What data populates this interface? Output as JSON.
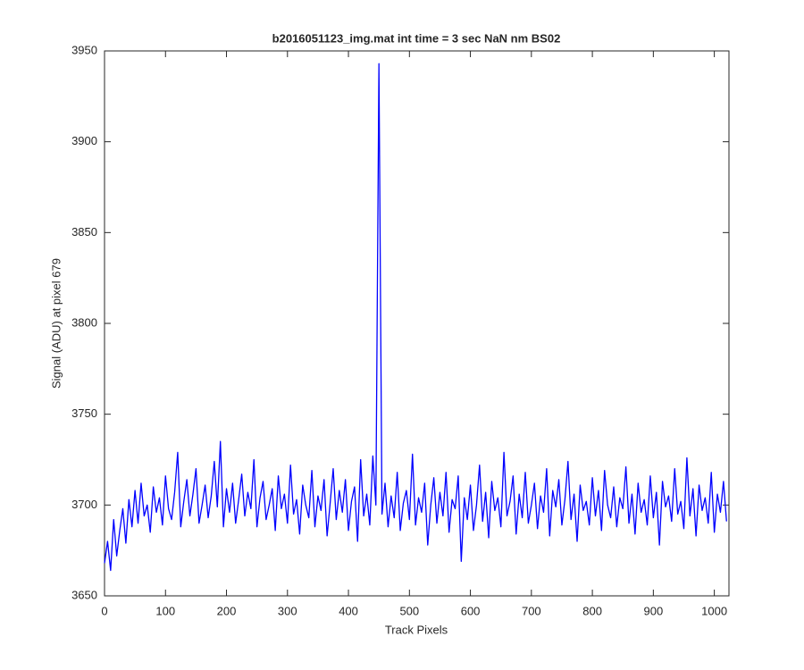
{
  "chart_data": {
    "type": "line",
    "title": "b2016051123_img.mat int time = 3 sec  NaN nm BS02",
    "xlabel": "Track Pixels",
    "ylabel": "Signal (ADU) at pixel 679",
    "color": "#0000ff",
    "xlim": [
      0,
      1024
    ],
    "ylim": [
      3650,
      3950
    ],
    "xticks": [
      0,
      100,
      200,
      300,
      400,
      500,
      600,
      700,
      800,
      900,
      1000
    ],
    "yticks": [
      3650,
      3700,
      3750,
      3800,
      3850,
      3900,
      3950
    ],
    "grid": false,
    "x": [
      0,
      5,
      10,
      15,
      20,
      25,
      30,
      35,
      40,
      45,
      50,
      55,
      60,
      65,
      70,
      75,
      80,
      85,
      90,
      95,
      100,
      105,
      110,
      115,
      120,
      125,
      130,
      135,
      140,
      145,
      150,
      155,
      160,
      165,
      170,
      175,
      180,
      185,
      190,
      195,
      200,
      205,
      210,
      215,
      220,
      225,
      230,
      235,
      240,
      245,
      250,
      255,
      260,
      265,
      270,
      275,
      280,
      285,
      290,
      295,
      300,
      305,
      310,
      315,
      320,
      325,
      330,
      335,
      340,
      345,
      350,
      355,
      360,
      365,
      370,
      375,
      380,
      385,
      390,
      395,
      400,
      405,
      410,
      415,
      420,
      425,
      430,
      435,
      440,
      445,
      450,
      455,
      460,
      465,
      470,
      475,
      480,
      485,
      490,
      495,
      500,
      505,
      510,
      515,
      520,
      525,
      530,
      535,
      540,
      545,
      550,
      555,
      560,
      565,
      570,
      575,
      580,
      585,
      590,
      595,
      600,
      605,
      610,
      615,
      620,
      625,
      630,
      635,
      640,
      645,
      650,
      655,
      660,
      665,
      670,
      675,
      680,
      685,
      690,
      695,
      700,
      705,
      710,
      715,
      720,
      725,
      730,
      735,
      740,
      745,
      750,
      755,
      760,
      765,
      770,
      775,
      780,
      785,
      790,
      795,
      800,
      805,
      810,
      815,
      820,
      825,
      830,
      835,
      840,
      845,
      850,
      855,
      860,
      865,
      870,
      875,
      880,
      885,
      890,
      895,
      900,
      905,
      910,
      915,
      920,
      925,
      930,
      935,
      940,
      945,
      950,
      955,
      960,
      965,
      970,
      975,
      980,
      985,
      990,
      995,
      1000,
      1005,
      1010,
      1015,
      1020
    ],
    "values": [
      3668,
      3680,
      3664,
      3692,
      3672,
      3686,
      3698,
      3679,
      3703,
      3688,
      3708,
      3690,
      3712,
      3694,
      3700,
      3685,
      3710,
      3696,
      3704,
      3689,
      3716,
      3698,
      3692,
      3707,
      3729,
      3688,
      3702,
      3714,
      3694,
      3706,
      3720,
      3690,
      3700,
      3711,
      3693,
      3705,
      3724,
      3699,
      3735,
      3688,
      3709,
      3696,
      3712,
      3690,
      3703,
      3717,
      3694,
      3707,
      3698,
      3725,
      3688,
      3704,
      3713,
      3692,
      3700,
      3709,
      3686,
      3716,
      3698,
      3706,
      3690,
      3722,
      3695,
      3703,
      3684,
      3711,
      3700,
      3693,
      3719,
      3688,
      3705,
      3697,
      3714,
      3683,
      3701,
      3720,
      3692,
      3708,
      3696,
      3714,
      3686,
      3702,
      3710,
      3680,
      3725,
      3694,
      3706,
      3689,
      3727,
      3700,
      3943,
      3695,
      3712,
      3688,
      3705,
      3693,
      3718,
      3686,
      3701,
      3708,
      3692,
      3728,
      3689,
      3704,
      3696,
      3712,
      3678,
      3700,
      3715,
      3690,
      3707,
      3694,
      3718,
      3685,
      3703,
      3698,
      3716,
      3669,
      3704,
      3692,
      3711,
      3686,
      3700,
      3722,
      3691,
      3707,
      3682,
      3713,
      3697,
      3704,
      3688,
      3729,
      3694,
      3702,
      3716,
      3684,
      3706,
      3693,
      3718,
      3690,
      3700,
      3712,
      3687,
      3705,
      3696,
      3720,
      3683,
      3708,
      3699,
      3714,
      3689,
      3703,
      3724,
      3692,
      3706,
      3680,
      3711,
      3697,
      3702,
      3689,
      3715,
      3694,
      3708,
      3686,
      3719,
      3700,
      3693,
      3710,
      3688,
      3704,
      3698,
      3721,
      3690,
      3706,
      3684,
      3712,
      3696,
      3703,
      3689,
      3716,
      3693,
      3707,
      3678,
      3713,
      3699,
      3705,
      3691,
      3720,
      3695,
      3702,
      3687,
      3726,
      3694,
      3709,
      3683,
      3711,
      3697,
      3704,
      3690,
      3718,
      3685,
      3706,
      3696,
      3713,
      3691
    ]
  }
}
